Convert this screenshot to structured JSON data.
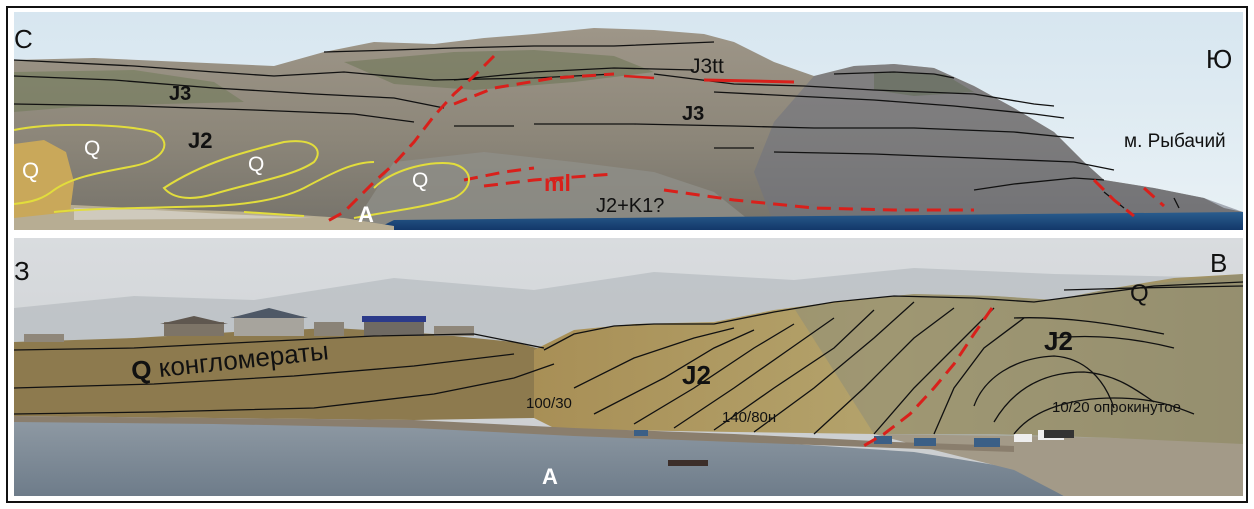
{
  "top_panel": {
    "compass_left": "С",
    "compass_right": "Ю",
    "cape": "м. Рыбачий",
    "units": {
      "j3_left": "J3",
      "j3_center": "J3",
      "j3tt": "J3tt",
      "j2": "J2",
      "j2_k1": "J2+K1?",
      "melange": "ml",
      "q1": "Q",
      "q2": "Q",
      "q3": "Q",
      "q4": "Q"
    },
    "point_a": "A"
  },
  "bottom_panel": {
    "compass_left": "З",
    "compass_right": "В",
    "units": {
      "q_top": "Q",
      "j2_center": "J2",
      "j2_right": "J2",
      "q_conglomerate_symbol": "Q",
      "q_conglomerate_text": "конгломераты"
    },
    "attitudes": {
      "a1": "100/30",
      "a2": "140/80н",
      "a3": "10/20 опрокинутое"
    },
    "point_a": "A"
  }
}
